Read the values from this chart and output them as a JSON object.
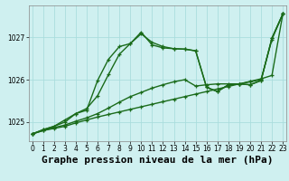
{
  "title": "Graphe pression niveau de la mer (hPa)",
  "bg_color": "#cff0f0",
  "grid_color": "#aadddd",
  "line_color": "#1a6b1a",
  "x_ticks": [
    0,
    1,
    2,
    3,
    4,
    5,
    6,
    7,
    8,
    9,
    10,
    11,
    12,
    13,
    14,
    15,
    16,
    17,
    18,
    19,
    20,
    21,
    22,
    23
  ],
  "y_ticks": [
    1025,
    1026,
    1027
  ],
  "ylim": [
    1024.55,
    1027.75
  ],
  "xlim": [
    -0.3,
    23.3
  ],
  "series": [
    {
      "x": [
        0,
        1,
        2,
        3,
        4,
        5,
        6,
        7,
        8,
        9,
        10,
        11,
        12,
        13,
        14,
        15,
        16,
        17,
        18,
        19,
        20,
        21,
        22,
        23
      ],
      "y": [
        1024.72,
        1024.8,
        1024.85,
        1024.9,
        1024.98,
        1025.05,
        1025.12,
        1025.18,
        1025.24,
        1025.3,
        1025.36,
        1025.42,
        1025.48,
        1025.54,
        1025.6,
        1025.66,
        1025.72,
        1025.78,
        1025.84,
        1025.9,
        1025.96,
        1026.02,
        1026.1,
        1027.55
      ]
    },
    {
      "x": [
        0,
        1,
        2,
        3,
        4,
        5,
        6,
        7,
        8,
        9,
        10,
        11,
        12,
        13,
        14,
        15,
        16,
        17,
        18,
        19,
        20,
        21,
        22,
        23
      ],
      "y": [
        1024.72,
        1024.8,
        1024.87,
        1024.93,
        1025.02,
        1025.1,
        1025.2,
        1025.33,
        1025.47,
        1025.6,
        1025.7,
        1025.8,
        1025.88,
        1025.95,
        1026.0,
        1025.85,
        1025.88,
        1025.9,
        1025.9,
        1025.9,
        1025.95,
        1026.0,
        1026.95,
        1027.55
      ]
    },
    {
      "x": [
        0,
        1,
        2,
        3,
        4,
        5,
        6,
        7,
        8,
        9,
        10,
        11,
        12,
        13,
        14,
        15,
        16,
        17,
        18,
        19,
        20,
        21,
        22,
        23
      ],
      "y": [
        1024.72,
        1024.82,
        1024.9,
        1025.0,
        1025.2,
        1025.28,
        1025.98,
        1026.48,
        1026.78,
        1026.85,
        1027.08,
        1026.88,
        1026.78,
        1026.73,
        1026.72,
        1026.68,
        1025.82,
        1025.72,
        1025.88,
        1025.9,
        1025.88,
        1025.98,
        1026.98,
        1027.55
      ]
    },
    {
      "x": [
        0,
        1,
        2,
        3,
        4,
        5,
        6,
        7,
        8,
        9,
        10,
        11,
        12,
        13,
        14,
        15,
        16,
        17,
        18,
        19,
        20,
        21,
        22,
        23
      ],
      "y": [
        1024.72,
        1024.82,
        1024.9,
        1025.05,
        1025.2,
        1025.32,
        1025.62,
        1026.12,
        1026.6,
        1026.85,
        1027.12,
        1026.82,
        1026.75,
        1026.73,
        1026.72,
        1026.68,
        1025.82,
        1025.72,
        1025.88,
        1025.9,
        1025.88,
        1025.98,
        1026.98,
        1027.55
      ]
    }
  ],
  "title_fontsize": 8,
  "tick_fontsize": 5.5,
  "line_width": 1.0,
  "marker_size": 3.5
}
